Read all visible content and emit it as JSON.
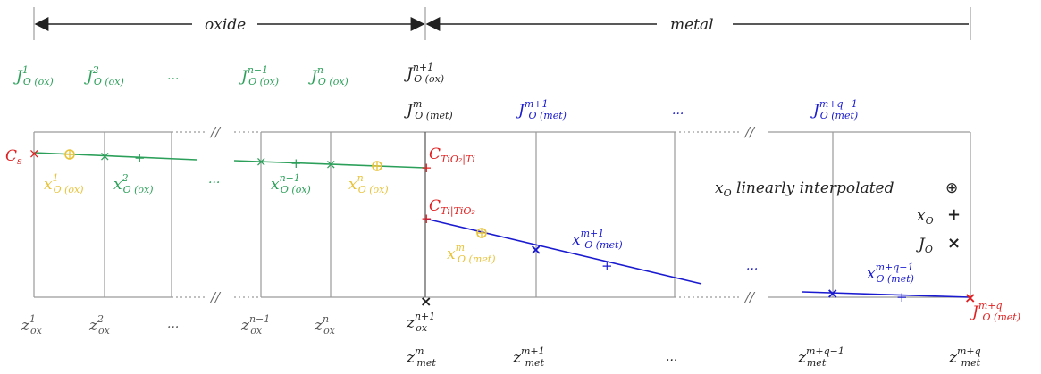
{
  "colors": {
    "oxide": "#2ca05a",
    "metal": "#1a1ad0",
    "interp": "#e8c33a",
    "red": "#e02020",
    "black": "#222222",
    "gray": "#8a8a8a",
    "box": "#9a9a9a"
  },
  "regions": {
    "oxide_label": "oxide",
    "metal_label": "metal"
  },
  "top_fluxes": {
    "ox1": {
      "base": "J",
      "sup": "1",
      "sub": "O (ox)"
    },
    "ox2": {
      "base": "J",
      "sup": "2",
      "sub": "O (ox)"
    },
    "dots1": "...",
    "oxn1": {
      "base": "J",
      "sup": "n−1",
      "sub": "O (ox)"
    },
    "oxn": {
      "base": "J",
      "sup": "n",
      "sub": "O (ox)"
    },
    "interface_ox": {
      "base": "J",
      "sup": "n+1",
      "sub": "O (ox)"
    },
    "interface_met": {
      "base": "J",
      "sup": "m",
      "sub": "O (met)"
    },
    "metm1": {
      "base": "J",
      "sup": "m+1",
      "sub": "O (met)"
    },
    "dots2": "...",
    "metq": {
      "base": "J",
      "sup": "m+q−1",
      "sub": "O (met)"
    }
  },
  "inner_labels": {
    "cs": {
      "base": "C",
      "sub": "s"
    },
    "c_tio2_ti": {
      "base": "C",
      "sub": "TiO₂|Ti"
    },
    "c_ti_tio2": {
      "base": "C",
      "sub": "Ti|TiO₂"
    },
    "x1_ox": {
      "base": "x",
      "sup": "1",
      "sub": "O (ox)"
    },
    "x2_ox": {
      "base": "x",
      "sup": "2",
      "sub": "O (ox)"
    },
    "dots_ox": "...",
    "xn1_ox": {
      "base": "x",
      "sup": "n−1",
      "sub": "O (ox)"
    },
    "xn_ox": {
      "base": "x",
      "sup": "n",
      "sub": "O (ox)"
    },
    "xm_met": {
      "base": "x",
      "sup": "m",
      "sub": "O (met)"
    },
    "xm1_met": {
      "base": "x",
      "sup": "m+1",
      "sub": "O (met)"
    },
    "dots_met": "...",
    "xq_met": {
      "base": "x",
      "sup": "m+q−1",
      "sub": "O (met)"
    },
    "jmq_met": {
      "base": "J",
      "sup": "m+q",
      "sub": "O (met)"
    }
  },
  "legend": {
    "interp": {
      "text": "x",
      "sub": "O",
      "rest": " linearly interpolated",
      "symbol": "⊕"
    },
    "node": {
      "text": "x",
      "sub": "O",
      "symbol": "+"
    },
    "flux": {
      "text": "J",
      "sub": "O",
      "symbol": "×"
    }
  },
  "bottom_coords": {
    "z1": {
      "base": "z",
      "sup": "1",
      "sub": "ox"
    },
    "z2": {
      "base": "z",
      "sup": "2",
      "sub": "ox"
    },
    "dots1": "...",
    "zn1": {
      "base": "z",
      "sup": "n−1",
      "sub": "ox"
    },
    "zn": {
      "base": "z",
      "sup": "n",
      "sub": "ox"
    },
    "zinterface_ox": {
      "base": "z",
      "sup": "n+1",
      "sub": "ox"
    },
    "zinterface_met": {
      "base": "z",
      "sup": "m",
      "sub": "met"
    },
    "zm1": {
      "base": "z",
      "sup": "m+1",
      "sub": "met"
    },
    "dots2": "...",
    "zq1": {
      "base": "z",
      "sup": "m+q−1",
      "sub": "met"
    },
    "zq": {
      "base": "z",
      "sup": "m+q",
      "sub": "met"
    }
  },
  "break_mark": "//"
}
